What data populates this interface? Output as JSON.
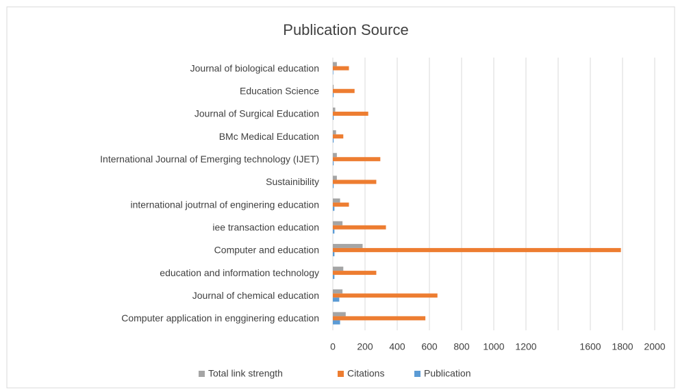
{
  "chart_data": {
    "type": "hbar",
    "title": "Publication Source",
    "categories": [
      "Journal of biological education",
      "Education Science",
      "Journal of Surgical Education",
      "BMc Medical Education",
      "International Journal of Emerging technology (IJET)",
      "Sustainibility",
      "international joutrnal of enginering education",
      "iee transaction education",
      "Computer and education",
      "education and information technology",
      "Journal of chemical education",
      "Computer application in engginering education"
    ],
    "series": [
      {
        "name": "Total link strength",
        "color": "#a5a5a5",
        "values": [
          25,
          5,
          15,
          20,
          25,
          25,
          45,
          60,
          185,
          65,
          60,
          80
        ]
      },
      {
        "name": "Citations",
        "color": "#ed7d31",
        "values": [
          100,
          135,
          220,
          65,
          295,
          270,
          100,
          330,
          1790,
          270,
          650,
          575
        ]
      },
      {
        "name": "Publication",
        "color": "#5b9bd5",
        "values": [
          3,
          5,
          5,
          5,
          5,
          5,
          10,
          10,
          10,
          10,
          40,
          45
        ]
      }
    ],
    "xlim": [
      0,
      2000
    ],
    "xticks": [
      0,
      200,
      400,
      600,
      800,
      1000,
      1200,
      1600,
      1800,
      2000
    ],
    "xgrid": [
      200,
      400,
      600,
      800,
      1000,
      1200,
      1400,
      1600,
      1800,
      2000
    ],
    "legend": "bottom"
  }
}
